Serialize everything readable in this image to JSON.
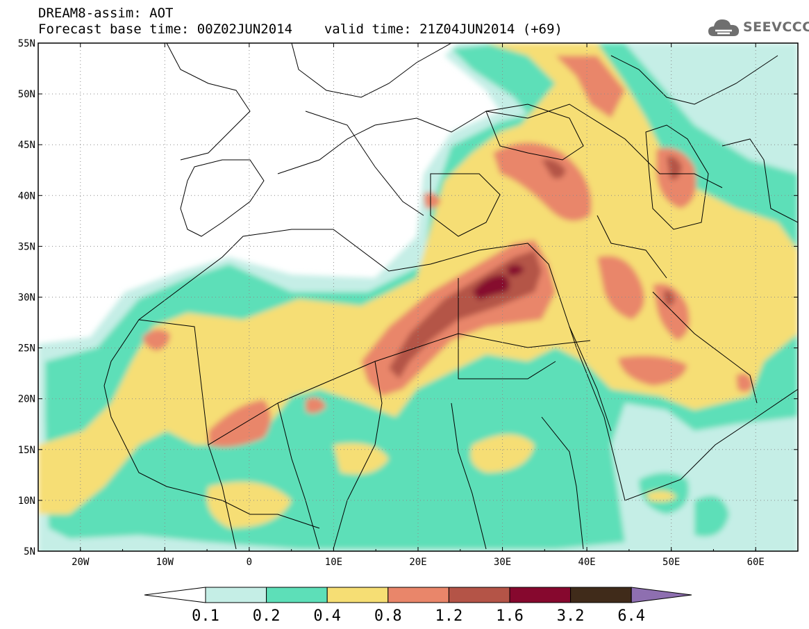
{
  "header": {
    "title": "DREAM8-assim: AOT",
    "forecast_base": "Forecast base time: 00Z02JUN2014",
    "valid_time": "valid time: 21Z04JUN2014 (+69)"
  },
  "logo": {
    "text": "SEEVCCC",
    "icon": "cloud-icon"
  },
  "map": {
    "lon_range": [
      -25,
      65
    ],
    "lat_range": [
      5,
      55
    ],
    "lat_ticks": [
      "55N",
      "50N",
      "45N",
      "40N",
      "35N",
      "30N",
      "25N",
      "20N",
      "15N",
      "10N",
      "5N"
    ],
    "lon_ticks": [
      "20W",
      "10W",
      "0",
      "10E",
      "20E",
      "30E",
      "40E",
      "50E",
      "60E"
    ]
  },
  "colorbar": {
    "levels": [
      "0.1",
      "0.2",
      "0.4",
      "0.8",
      "1.2",
      "1.6",
      "3.2",
      "6.4"
    ],
    "colors": [
      "#ffffff",
      "#c5eee6",
      "#5ddfb8",
      "#f6de74",
      "#e9866a",
      "#b45447",
      "#86082e",
      "#402b1a",
      "#8e6fb0"
    ]
  }
}
